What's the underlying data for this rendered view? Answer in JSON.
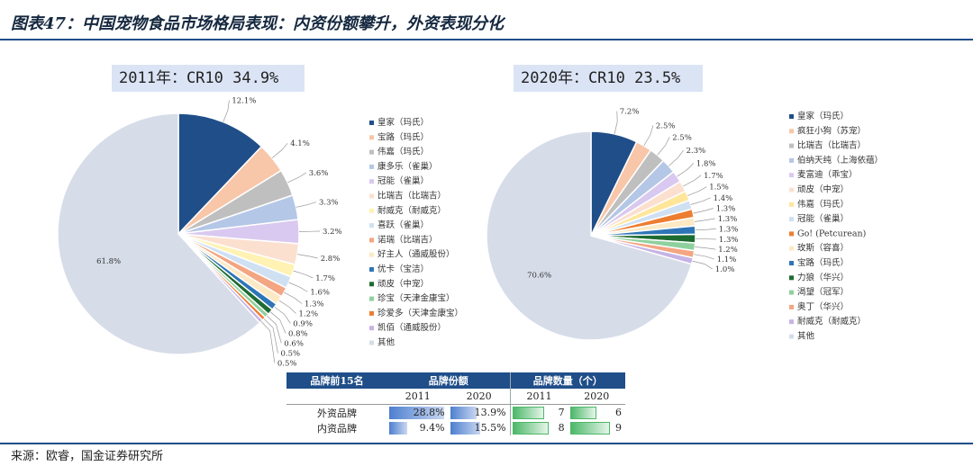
{
  "header": {
    "title": "图表47：中国宠物食品市场格局表现：内资份额攀升，外资表现分化"
  },
  "source": "来源：欧睿，国金证券研究所",
  "colors": {
    "accent": "#1f4e89"
  },
  "chart_data": [
    {
      "type": "pie",
      "title": "2011年：CR10 34.9%",
      "slices": [
        {
          "name": "皇家（玛氏）",
          "value": 12.1,
          "label": "12.1%",
          "color": "#1f4e89"
        },
        {
          "name": "宝路（玛氏）",
          "value": 4.1,
          "label": "4.1%",
          "color": "#f8c6a8"
        },
        {
          "name": "伟嘉（玛氏）",
          "value": 3.6,
          "label": "3.6%",
          "color": "#bfbfbf"
        },
        {
          "name": "康多乐（雀巢）",
          "value": 3.3,
          "label": "3.3%",
          "color": "#b4c7e7"
        },
        {
          "name": "冠能（雀巢）",
          "value": 3.2,
          "label": "3.2%",
          "color": "#d9c9f0"
        },
        {
          "name": "比瑞吉（比瑞吉）",
          "value": 2.8,
          "label": "2.8%",
          "color": "#fbe0d0"
        },
        {
          "name": "耐威克（耐威克）",
          "value": 1.7,
          "label": "1.7%",
          "color": "#fff2b3"
        },
        {
          "name": "喜跃（雀巢）",
          "value": 1.6,
          "label": "1.6%",
          "color": "#cfe0f3"
        },
        {
          "name": "诺瑞（比瑞吉）",
          "value": 1.3,
          "label": "1.3%",
          "color": "#f4a582"
        },
        {
          "name": "好主人（通威股份）",
          "value": 1.2,
          "label": "1.2%",
          "color": "#fde9c4"
        },
        {
          "name": "优卡（宝洁）",
          "value": 0.9,
          "label": "0.9%",
          "color": "#2e75b6"
        },
        {
          "name": "顽皮（中宠）",
          "value": 0.8,
          "label": "0.8%",
          "color": "#1e6b32"
        },
        {
          "name": "珍宝（天津金康宝）",
          "value": 0.6,
          "label": "0.6%",
          "color": "#8fd19e"
        },
        {
          "name": "珍爱多（天津金康宝）",
          "value": 0.5,
          "label": "0.5%",
          "color": "#ed7d31"
        },
        {
          "name": "凯佰（通威股份）",
          "value": 0.5,
          "label": "0.5%",
          "color": "#c6b3e6"
        },
        {
          "name": "其他",
          "value": 61.8,
          "label": "61.8%",
          "color": "#d6dce8"
        }
      ]
    },
    {
      "type": "pie",
      "title": "2020年：CR10 23.5%",
      "slices": [
        {
          "name": "皇家（玛氏）",
          "value": 7.2,
          "label": "7.2%",
          "color": "#1f4e89"
        },
        {
          "name": "疯狂小狗（苏宠）",
          "value": 2.5,
          "label": "2.5%",
          "color": "#f8c6a8"
        },
        {
          "name": "比瑞吉（比瑞吉）",
          "value": 2.5,
          "label": "2.5%",
          "color": "#bfbfbf"
        },
        {
          "name": "伯纳天纯（上海依蕴）",
          "value": 2.3,
          "label": "2.3%",
          "color": "#b4c7e7"
        },
        {
          "name": "麦富迪（乖宝）",
          "value": 1.8,
          "label": "1.8%",
          "color": "#d9c9f0"
        },
        {
          "name": "顽皮（中宠）",
          "value": 1.7,
          "label": "1.7%",
          "color": "#fbe0d0"
        },
        {
          "name": "伟嘉（玛氏）",
          "value": 1.5,
          "label": "1.5%",
          "color": "#ffe699"
        },
        {
          "name": "冠能（雀巢）",
          "value": 1.4,
          "label": "1.4%",
          "color": "#cfe0f3"
        },
        {
          "name": "Go! (Petcurean)",
          "value": 1.3,
          "label": "1.3%",
          "color": "#ed7d31"
        },
        {
          "name": "玫斯（容喜）",
          "value": 1.3,
          "label": "1.3%",
          "color": "#fde9c4"
        },
        {
          "name": "宝路（玛氏）",
          "value": 1.3,
          "label": "1.3%",
          "color": "#2e75b6"
        },
        {
          "name": "力狼（华兴）",
          "value": 1.3,
          "label": "1.3%",
          "color": "#1e6b32"
        },
        {
          "name": "渴望（冠军）",
          "value": 1.2,
          "label": "1.2%",
          "color": "#8fd19e"
        },
        {
          "name": "奥丁（华兴）",
          "value": 1.1,
          "label": "1.1%",
          "color": "#f4a582"
        },
        {
          "name": "耐威克（耐威克）",
          "value": 1.0,
          "label": "1.0%",
          "color": "#c6b3e6"
        },
        {
          "name": "其他",
          "value": 70.6,
          "label": "70.6%",
          "color": "#d6dce8"
        }
      ]
    },
    {
      "type": "table",
      "columns": [
        "品牌前15名",
        "品牌份额",
        "品牌数量（个）"
      ],
      "years": [
        "2011",
        "2020",
        "2011",
        "2020"
      ],
      "rows": [
        {
          "name": "外资品牌",
          "share_2011": 28.8,
          "share_2020": 13.9,
          "share_2011_label": "28.8%",
          "share_2020_label": "13.9%",
          "count_2011": 7,
          "count_2020": 6,
          "count_2011_label": "7",
          "count_2020_label": "6"
        },
        {
          "name": "内资品牌",
          "share_2011": 9.4,
          "share_2020": 15.5,
          "share_2011_label": "9.4%",
          "share_2020_label": "15.5%",
          "count_2011": 8,
          "count_2020": 9,
          "count_2011_label": "8",
          "count_2020_label": "9"
        }
      ]
    }
  ]
}
